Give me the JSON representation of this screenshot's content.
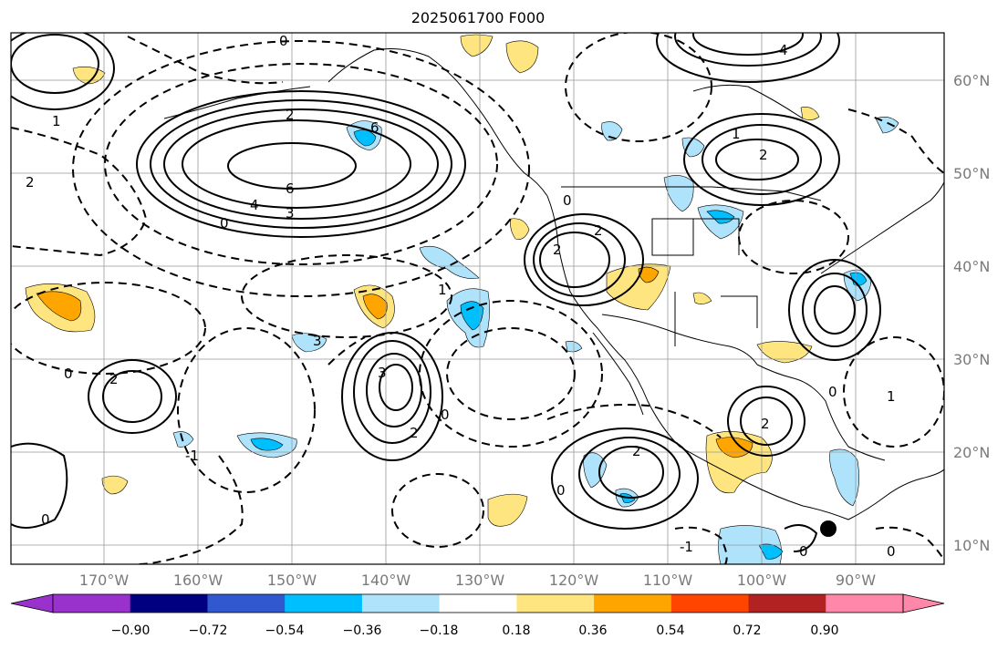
{
  "title": "2025061700 F000",
  "map": {
    "lon_labels": [
      "170°W",
      "160°W",
      "150°W",
      "140°W",
      "130°W",
      "120°W",
      "110°W",
      "100°W",
      "90°W"
    ],
    "lat_labels": [
      "60°N",
      "50°N",
      "40°N",
      "30°N",
      "20°N",
      "10°N"
    ],
    "contour_labels": [
      "0",
      "4",
      "6",
      "6",
      "3",
      "4",
      "2",
      "0",
      "1",
      "2",
      "2",
      "2",
      "3",
      "3",
      "0",
      "2",
      "2",
      "1",
      "0",
      "-1",
      "2",
      "0",
      "0",
      "-1",
      "2",
      "0",
      "0",
      "0",
      "0",
      "1",
      "2",
      "1"
    ]
  },
  "colorbar": {
    "ticks": [
      "−0.90",
      "−0.72",
      "−0.54",
      "−0.36",
      "−0.18",
      "0.18",
      "0.36",
      "0.54",
      "0.72",
      "0.90"
    ],
    "colors": [
      "#9932cc",
      "#9932cc",
      "#000080",
      "#3258d0",
      "#00bfff",
      "#aee3fb",
      "#ffffff",
      "#ffe57f",
      "#ffa500",
      "#ff4500",
      "#b22222",
      "#ff88aa",
      "#ff88aa"
    ]
  },
  "marker": {
    "color": "#000000"
  }
}
